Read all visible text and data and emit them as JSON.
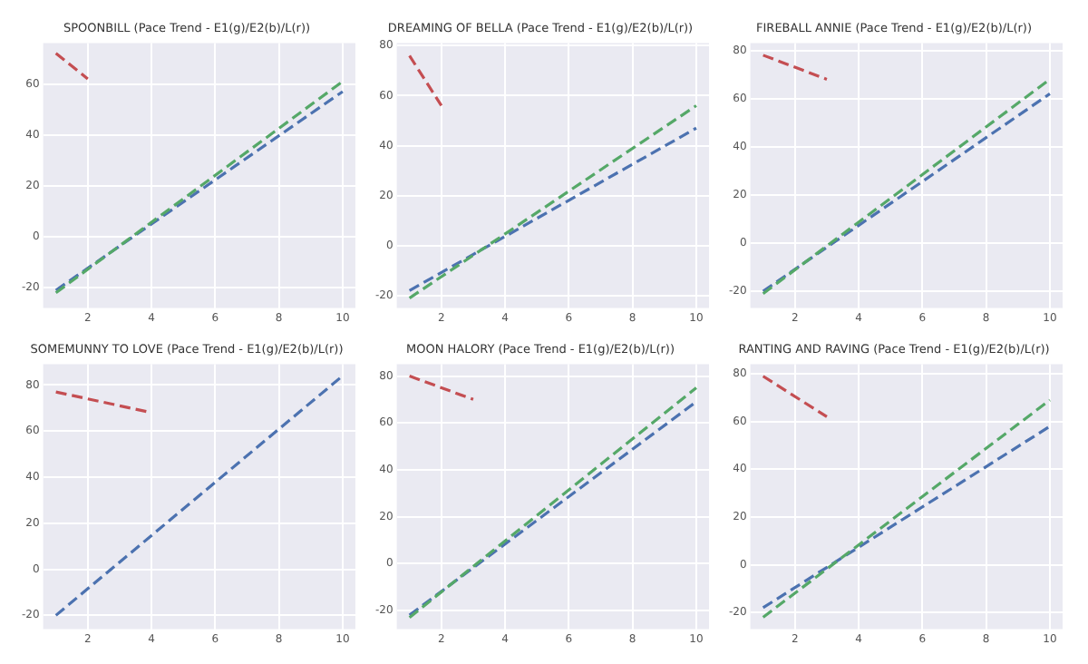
{
  "chart_data": [
    {
      "type": "line",
      "title": "SPOONBILL (Pace Trend - E1(g)/E2(b)/L(r))",
      "xlim": [
        0.6,
        10.4
      ],
      "xticks": [
        2,
        4,
        6,
        8,
        10
      ],
      "ylim": [
        -28,
        76
      ],
      "yticks": [
        -20,
        0,
        20,
        40,
        60
      ],
      "grid": true,
      "line_style": "dashed",
      "series": [
        {
          "color": "#c44e52",
          "x": [
            1,
            2
          ],
          "values": [
            72,
            62
          ]
        },
        {
          "color": "#55a868",
          "x": [
            1,
            10
          ],
          "values": [
            -22,
            61
          ]
        },
        {
          "color": "#4c72b0",
          "x": [
            1,
            10
          ],
          "values": [
            -21,
            57
          ]
        }
      ]
    },
    {
      "type": "line",
      "title": "DREAMING OF BELLA (Pace Trend - E1(g)/E2(b)/L(r))",
      "xlim": [
        0.6,
        10.4
      ],
      "xticks": [
        2,
        4,
        6,
        8,
        10
      ],
      "ylim": [
        -25,
        81
      ],
      "yticks": [
        -20,
        0,
        20,
        40,
        60,
        80
      ],
      "grid": true,
      "line_style": "dashed",
      "series": [
        {
          "color": "#c44e52",
          "x": [
            1,
            2
          ],
          "values": [
            76,
            56
          ]
        },
        {
          "color": "#55a868",
          "x": [
            1,
            10
          ],
          "values": [
            -21,
            56
          ]
        },
        {
          "color": "#4c72b0",
          "x": [
            1,
            10
          ],
          "values": [
            -18,
            47
          ]
        }
      ]
    },
    {
      "type": "line",
      "title": "FIREBALL ANNIE (Pace Trend - E1(g)/E2(b)/L(r))",
      "xlim": [
        0.6,
        10.4
      ],
      "xticks": [
        2,
        4,
        6,
        8,
        10
      ],
      "ylim": [
        -27,
        83
      ],
      "yticks": [
        -20,
        0,
        20,
        40,
        60,
        80
      ],
      "grid": true,
      "line_style": "dashed",
      "series": [
        {
          "color": "#c44e52",
          "x": [
            1,
            3
          ],
          "values": [
            78,
            68
          ]
        },
        {
          "color": "#55a868",
          "x": [
            1,
            10
          ],
          "values": [
            -21,
            68
          ]
        },
        {
          "color": "#4c72b0",
          "x": [
            1,
            10
          ],
          "values": [
            -20,
            62
          ]
        }
      ]
    },
    {
      "type": "line",
      "title": "SOMEMUNNY TO LOVE (Pace Trend - E1(g)/E2(b)/L(r))",
      "xlim": [
        0.6,
        10.4
      ],
      "xticks": [
        2,
        4,
        6,
        8,
        10
      ],
      "ylim": [
        -26,
        89
      ],
      "yticks": [
        -20,
        0,
        20,
        40,
        60,
        80
      ],
      "grid": true,
      "line_style": "dashed",
      "series": [
        {
          "color": "#c44e52",
          "x": [
            1,
            4
          ],
          "values": [
            77,
            68
          ]
        },
        {
          "color": "#4c72b0",
          "x": [
            1,
            10
          ],
          "values": [
            -20,
            84
          ]
        }
      ]
    },
    {
      "type": "line",
      "title": "MOON HALORY (Pace Trend - E1(g)/E2(b)/L(r))",
      "xlim": [
        0.6,
        10.4
      ],
      "xticks": [
        2,
        4,
        6,
        8,
        10
      ],
      "ylim": [
        -28,
        85
      ],
      "yticks": [
        -20,
        0,
        20,
        40,
        60,
        80
      ],
      "grid": true,
      "line_style": "dashed",
      "series": [
        {
          "color": "#c44e52",
          "x": [
            1,
            3
          ],
          "values": [
            80,
            70
          ]
        },
        {
          "color": "#55a868",
          "x": [
            1,
            10
          ],
          "values": [
            -23,
            75
          ]
        },
        {
          "color": "#4c72b0",
          "x": [
            1,
            10
          ],
          "values": [
            -22,
            69
          ]
        }
      ]
    },
    {
      "type": "line",
      "title": "RANTING AND RAVING (Pace Trend - E1(g)/E2(b)/L(r))",
      "xlim": [
        0.6,
        10.4
      ],
      "xticks": [
        2,
        4,
        6,
        8,
        10
      ],
      "ylim": [
        -27,
        84
      ],
      "yticks": [
        -20,
        0,
        20,
        40,
        60,
        80
      ],
      "grid": true,
      "line_style": "dashed",
      "series": [
        {
          "color": "#c44e52",
          "x": [
            1,
            3
          ],
          "values": [
            79,
            62
          ]
        },
        {
          "color": "#55a868",
          "x": [
            1,
            10
          ],
          "values": [
            -22,
            69
          ]
        },
        {
          "color": "#4c72b0",
          "x": [
            1,
            10
          ],
          "values": [
            -18,
            58
          ]
        }
      ]
    }
  ]
}
